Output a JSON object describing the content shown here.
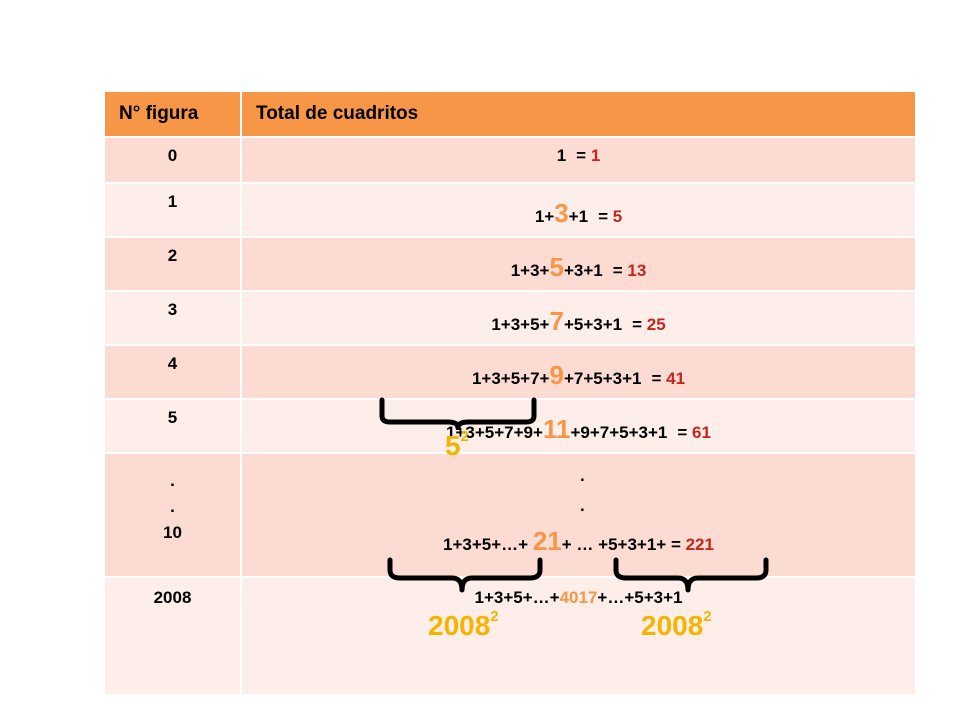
{
  "header": {
    "col1": "N° figura",
    "col2": "Total de cuadritos"
  },
  "rows": [
    {
      "n": "0",
      "pre": "1",
      "big": "",
      "post": "",
      "eq": "= ",
      "res": "1"
    },
    {
      "n": "1",
      "pre": "1+",
      "big": "3",
      "post": "+1",
      "eq": "= ",
      "res": "5"
    },
    {
      "n": "2",
      "pre": "1+3+",
      "big": "5",
      "post": "+3+1",
      "eq": "= ",
      "res": "13"
    },
    {
      "n": "3",
      "pre": "1+3+5+",
      "big": "7",
      "post": "+5+3+1",
      "eq": "= ",
      "res": "25"
    },
    {
      "n": "4",
      "pre": "1+3+5+7+",
      "big": "9",
      "post": "+7+5+3+1",
      "eq": "= ",
      "res": "41"
    },
    {
      "n": "5",
      "pre": "1+3+5+7+9+",
      "big": "11",
      "post": "+9+7+5+3+1",
      "eq": "= ",
      "res": "61"
    }
  ],
  "dots_row": {
    "n_dot1": ".",
    "n_dot2": ".",
    "n_val": "10",
    "dot1": ".",
    "dot2": ".",
    "pre": "1+3+5+…+ ",
    "big": "21",
    "post": "+ … +5+3+1+ = ",
    "res": "221"
  },
  "last_row": {
    "n": "2008",
    "pre": "1+3+5+…+",
    "mid": "4017",
    "post": "+…+5+3+1"
  },
  "annotations": {
    "five_sq_base": "5",
    "five_sq_exp": "2",
    "left_base": "2008",
    "left_exp": "2",
    "right_base": "2008",
    "right_exp": "2"
  },
  "colors": {
    "header": "#f79646",
    "odd_row": "#fcdbd2",
    "even_row": "#fdeeea",
    "result": "#c0271f",
    "highlight": "#f79646",
    "square": "#f4b400"
  }
}
